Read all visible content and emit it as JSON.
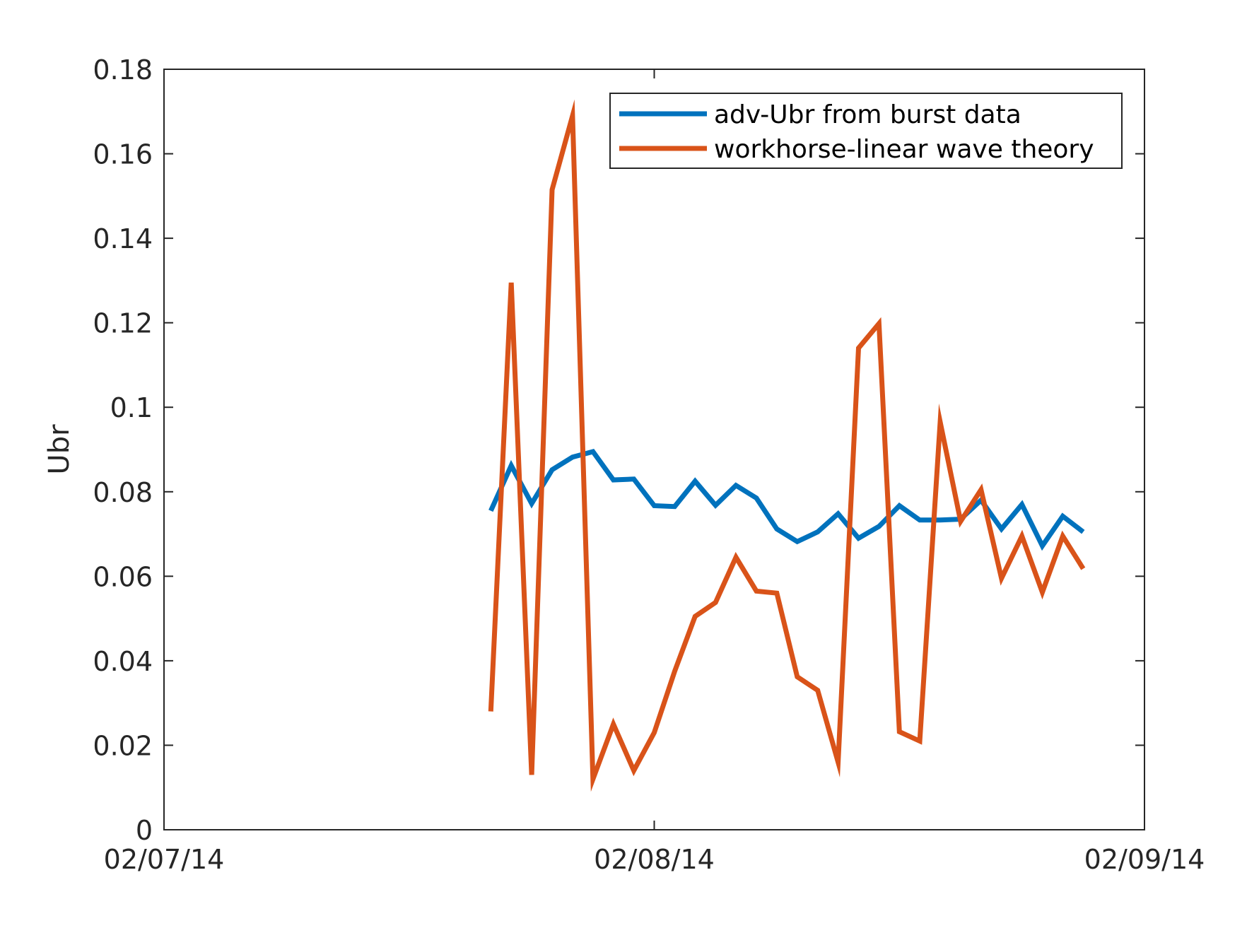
{
  "chart_data": {
    "type": "line",
    "title": "",
    "xlabel": "",
    "ylabel": "Ubr",
    "ylim": [
      0,
      0.18
    ],
    "yticks": [
      "0",
      "0.02",
      "0.04",
      "0.06",
      "0.08",
      "0.1",
      "0.12",
      "0.14",
      "0.16",
      "0.18"
    ],
    "xlim": [
      "2014-02-07 00:00",
      "2014-02-09 00:00"
    ],
    "xticks": [
      {
        "value": "2014-02-07 00:00",
        "label": "02/07/14"
      },
      {
        "value": "2014-02-08 00:00",
        "label": "02/08/14"
      },
      {
        "value": "2014-02-09 00:00",
        "label": "02/09/14"
      }
    ],
    "grid": false,
    "legend_position": "top-right",
    "series": [
      {
        "name": "adv-Ubr from burst data",
        "color": "#0072BD",
        "points": [
          [
            "2014-02-07 16:00",
            0.0755
          ],
          [
            "2014-02-07 17:00",
            0.0862
          ],
          [
            "2014-02-07 18:00",
            0.0772
          ],
          [
            "2014-02-07 19:00",
            0.0852
          ],
          [
            "2014-02-07 20:00",
            0.0882
          ],
          [
            "2014-02-07 21:00",
            0.0895
          ],
          [
            "2014-02-07 22:00",
            0.0828
          ],
          [
            "2014-02-07 23:00",
            0.083
          ],
          [
            "2014-02-08 00:00",
            0.0767
          ],
          [
            "2014-02-08 01:00",
            0.0765
          ],
          [
            "2014-02-08 02:00",
            0.0825
          ],
          [
            "2014-02-08 03:00",
            0.0768
          ],
          [
            "2014-02-08 04:00",
            0.0815
          ],
          [
            "2014-02-08 05:00",
            0.0785
          ],
          [
            "2014-02-08 06:00",
            0.0712
          ],
          [
            "2014-02-08 07:00",
            0.0682
          ],
          [
            "2014-02-08 08:00",
            0.0705
          ],
          [
            "2014-02-08 09:00",
            0.0748
          ],
          [
            "2014-02-08 10:00",
            0.069
          ],
          [
            "2014-02-08 11:00",
            0.0718
          ],
          [
            "2014-02-08 12:00",
            0.0767
          ],
          [
            "2014-02-08 13:00",
            0.0733
          ],
          [
            "2014-02-08 14:00",
            0.0733
          ],
          [
            "2014-02-08 15:00",
            0.0735
          ],
          [
            "2014-02-08 16:00",
            0.078
          ],
          [
            "2014-02-08 17:00",
            0.0712
          ],
          [
            "2014-02-08 18:00",
            0.077
          ],
          [
            "2014-02-08 19:00",
            0.0672
          ],
          [
            "2014-02-08 20:00",
            0.0742
          ],
          [
            "2014-02-08 21:00",
            0.0705
          ]
        ]
      },
      {
        "name": "workhorse-linear wave theory",
        "color": "#D95319",
        "points": [
          [
            "2014-02-07 16:00",
            0.028
          ],
          [
            "2014-02-07 17:00",
            0.1295
          ],
          [
            "2014-02-07 18:00",
            0.013
          ],
          [
            "2014-02-07 19:00",
            0.1515
          ],
          [
            "2014-02-07 20:00",
            0.169
          ],
          [
            "2014-02-07 21:00",
            0.012
          ],
          [
            "2014-02-07 22:00",
            0.025
          ],
          [
            "2014-02-07 23:00",
            0.014
          ],
          [
            "2014-02-08 00:00",
            0.023
          ],
          [
            "2014-02-08 01:00",
            0.0375
          ],
          [
            "2014-02-08 02:00",
            0.0505
          ],
          [
            "2014-02-08 03:00",
            0.0538
          ],
          [
            "2014-02-08 04:00",
            0.0645
          ],
          [
            "2014-02-08 05:00",
            0.0565
          ],
          [
            "2014-02-08 06:00",
            0.056
          ],
          [
            "2014-02-08 07:00",
            0.0362
          ],
          [
            "2014-02-08 08:00",
            0.033
          ],
          [
            "2014-02-08 09:00",
            0.016
          ],
          [
            "2014-02-08 10:00",
            0.114
          ],
          [
            "2014-02-08 11:00",
            0.1198
          ],
          [
            "2014-02-08 12:00",
            0.0232
          ],
          [
            "2014-02-08 13:00",
            0.021
          ],
          [
            "2014-02-08 14:00",
            0.0965
          ],
          [
            "2014-02-08 15:00",
            0.073
          ],
          [
            "2014-02-08 16:00",
            0.0805
          ],
          [
            "2014-02-08 17:00",
            0.0595
          ],
          [
            "2014-02-08 18:00",
            0.0695
          ],
          [
            "2014-02-08 19:00",
            0.0562
          ],
          [
            "2014-02-08 20:00",
            0.0695
          ],
          [
            "2014-02-08 21:00",
            0.0618
          ]
        ]
      }
    ]
  }
}
